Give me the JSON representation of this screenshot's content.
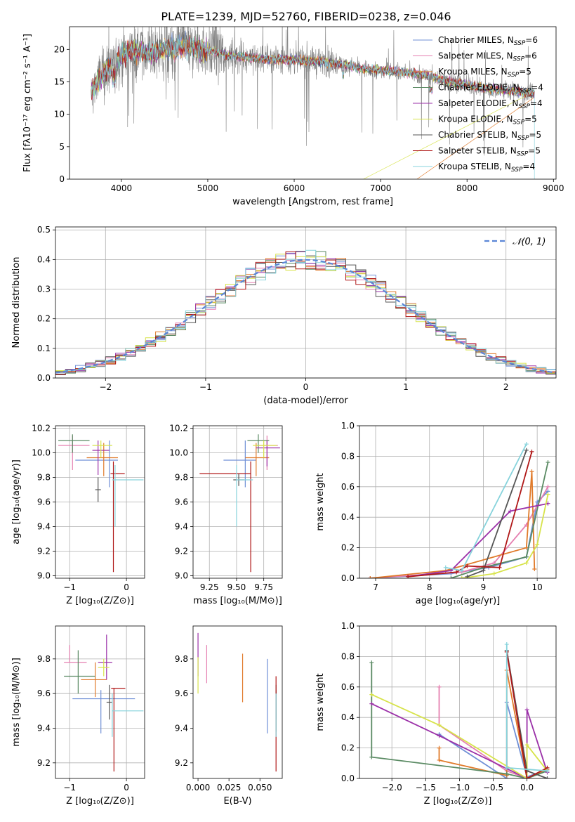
{
  "figure_title": "PLATE=1239, MJD=52760, FIBERID=0238, z=0.046",
  "models": [
    {
      "name": "Chabrier MILES",
      "nssp": "6",
      "color": "#6f8fd6"
    },
    {
      "name": "Salpeter MILES",
      "nssp": "6",
      "color": "#e57fb0"
    },
    {
      "name": "Kroupa MILES",
      "nssp": "5",
      "color": "#e07a2a"
    },
    {
      "name": "Chabrier ELODIE",
      "nssp": "4",
      "color": "#5a8a63"
    },
    {
      "name": "Salpeter ELODIE",
      "nssp": "4",
      "color": "#9b30a8"
    },
    {
      "name": "Kroupa ELODIE",
      "nssp": "5",
      "color": "#d7e34a"
    },
    {
      "name": "Chabrier STELIB",
      "nssp": "5",
      "color": "#555555"
    },
    {
      "name": "Salpeter STELIB",
      "nssp": "5",
      "color": "#b01818"
    },
    {
      "name": "Kroupa STELIB",
      "nssp": "4",
      "color": "#87d3dc"
    }
  ],
  "chart_data": [
    {
      "id": "spectrum",
      "type": "line",
      "xlabel": "wavelength [Angstrom, rest frame]",
      "ylabel": "Flux [fλ10⁻¹⁷ erg cm⁻² s⁻¹ A⁻¹]",
      "xlim": [
        3400,
        9030
      ],
      "ylim": [
        0,
        23.5
      ],
      "xticks": [
        4000,
        5000,
        6000,
        7000,
        8000,
        9000
      ],
      "yticks": [
        0,
        5,
        10,
        15,
        20
      ],
      "observed": {
        "name": "data",
        "color": "#808080",
        "x_range": [
          3650,
          8780
        ]
      },
      "model_profile": {
        "x": [
          3650,
          3700,
          3800,
          3900,
          4000,
          4100,
          4300,
          4500,
          4700,
          5000,
          5300,
          5600,
          6000,
          6400,
          6600,
          6800,
          7000,
          7200,
          7400,
          7600,
          7800,
          8000,
          8200,
          8500,
          8780
        ],
        "y": [
          13.0,
          14.5,
          16.5,
          17.5,
          19.0,
          19.8,
          19.5,
          20.0,
          20.5,
          19.8,
          19.0,
          18.6,
          18.4,
          18.0,
          17.6,
          17.0,
          16.8,
          16.6,
          16.2,
          15.8,
          15.0,
          14.6,
          14.0,
          13.6,
          13.2
        ]
      },
      "model_extent": [
        3650,
        8780
      ],
      "series_cutoffs": [
        {
          "model": "Kroupa MILES",
          "x": [
            3900,
            7420
          ]
        },
        {
          "model": "Kroupa ELODIE",
          "x": [
            3900,
            6800
          ]
        },
        {
          "model": "Kroupa STELIB",
          "x": [
            4400,
            8780
          ]
        }
      ],
      "legend": "top-right",
      "grid": false
    },
    {
      "id": "residuals",
      "type": "histogram",
      "xlabel": "(data-model)/error",
      "ylabel": "Normed distribution",
      "xlim": [
        -2.5,
        2.5
      ],
      "ylim": [
        0,
        0.51
      ],
      "xticks": [
        -2,
        -1,
        0,
        1,
        2
      ],
      "yticks": [
        0,
        0.1,
        0.2,
        0.3,
        0.4,
        0.5
      ],
      "reference": {
        "label": "𝒩(0, 1)",
        "mean": 0,
        "sigma": 1,
        "color": "#5b86d6"
      },
      "bin_width": 0.1,
      "bin_start": -2.5,
      "legend": "top-right",
      "grid": true
    },
    {
      "id": "age-vs-z",
      "type": "scatter_errorbar",
      "xlabel": "Z [log₁₀(Z/Z⊙)]",
      "ylabel": "age  [log₁₀(age/yr)]",
      "xlim": [
        -1.25,
        0.32
      ],
      "ylim": [
        8.98,
        10.22
      ],
      "xticks": [
        -1,
        0
      ],
      "yticks": [
        9.0,
        9.2,
        9.4,
        9.6,
        9.8,
        10.0,
        10.2
      ],
      "grid": true,
      "points": [
        {
          "model": "Chabrier MILES",
          "x": -0.3,
          "xerr": [
            0.6,
            0.15
          ],
          "y": 9.94,
          "yerr": [
            0.22,
            0.16
          ]
        },
        {
          "model": "Salpeter MILES",
          "x": -0.95,
          "xerr": [
            0.25,
            0.3
          ],
          "y": 10.06,
          "yerr": [
            0.2,
            0.08
          ]
        },
        {
          "model": "Kroupa MILES",
          "x": -0.4,
          "xerr": [
            0.3,
            0.25
          ],
          "y": 9.96,
          "yerr": [
            0.15,
            0.12
          ]
        },
        {
          "model": "Chabrier ELODIE",
          "x": -0.95,
          "xerr": [
            0.25,
            0.3
          ],
          "y": 10.1,
          "yerr": [
            0.1,
            0.05
          ]
        },
        {
          "model": "Salpeter ELODIE",
          "x": -0.5,
          "xerr": [
            0.1,
            0.2
          ],
          "y": 10.02,
          "yerr": [
            0.2,
            0.08
          ]
        },
        {
          "model": "Kroupa ELODIE",
          "x": -0.45,
          "xerr": [
            0.15,
            0.2
          ],
          "y": 10.06,
          "yerr": [
            0.1,
            0.04
          ]
        },
        {
          "model": "Chabrier STELIB",
          "x": -0.5,
          "xerr": [
            0.05,
            0.05
          ],
          "y": 9.7,
          "yerr": [
            0.1,
            0.1
          ]
        },
        {
          "model": "Salpeter STELIB",
          "x": -0.23,
          "xerr": [
            0.05,
            0.2
          ],
          "y": 9.83,
          "yerr": [
            0.8,
            0.1
          ]
        },
        {
          "model": "Kroupa STELIB",
          "x": -0.2,
          "xerr": [
            0.05,
            0.5
          ],
          "y": 9.78,
          "yerr": [
            0.38,
            0.12
          ]
        }
      ]
    },
    {
      "id": "age-vs-mass",
      "type": "scatter_errorbar",
      "xlabel": "mass [log₁₀(M/M⊙)]",
      "ylabel": "",
      "xlim": [
        9.1,
        9.92
      ],
      "ylim": [
        8.98,
        10.22
      ],
      "xticks": [
        9.25,
        9.5,
        9.75
      ],
      "yticks": [
        9.0,
        9.2,
        9.4,
        9.6,
        9.8,
        10.0,
        10.2
      ],
      "grid": true,
      "points": [
        {
          "model": "Chabrier MILES",
          "x": 9.58,
          "xerr": [
            0.2,
            0.1
          ],
          "y": 9.94,
          "yerr": [
            0.22,
            0.16
          ]
        },
        {
          "model": "Salpeter MILES",
          "x": 9.78,
          "xerr": [
            0.1,
            0.1
          ],
          "y": 10.06,
          "yerr": [
            0.2,
            0.08
          ]
        },
        {
          "model": "Kroupa MILES",
          "x": 9.68,
          "xerr": [
            0.1,
            0.12
          ],
          "y": 9.96,
          "yerr": [
            0.15,
            0.12
          ]
        },
        {
          "model": "Chabrier ELODIE",
          "x": 9.7,
          "xerr": [
            0.1,
            0.1
          ],
          "y": 10.1,
          "yerr": [
            0.1,
            0.05
          ]
        },
        {
          "model": "Salpeter ELODIE",
          "x": 9.78,
          "xerr": [
            0.1,
            0.12
          ],
          "y": 10.04,
          "yerr": [
            0.15,
            0.06
          ]
        },
        {
          "model": "Kroupa ELODIE",
          "x": 9.75,
          "xerr": [
            0.1,
            0.12
          ],
          "y": 10.06,
          "yerr": [
            0.1,
            0.04
          ]
        },
        {
          "model": "Chabrier STELIB",
          "x": 9.52,
          "xerr": [
            0.05,
            0.05
          ],
          "y": 9.78,
          "yerr": [
            0.05,
            0.05
          ]
        },
        {
          "model": "Salpeter STELIB",
          "x": 9.63,
          "xerr": [
            0.47,
            0.0
          ],
          "y": 9.83,
          "yerr": [
            0.8,
            0.1
          ]
        },
        {
          "model": "Kroupa STELIB",
          "x": 9.5,
          "xerr": [
            0.0,
            0.15
          ],
          "y": 9.78,
          "yerr": [
            0.38,
            0.12
          ]
        }
      ]
    },
    {
      "id": "massweight-vs-age",
      "type": "line",
      "xlabel": "age  [log₁₀(age/yr)]",
      "ylabel": "mass weight",
      "xlim": [
        6.7,
        10.35
      ],
      "ylim": [
        0,
        1.0
      ],
      "xticks": [
        7,
        8,
        9,
        10
      ],
      "yticks": [
        0,
        0.2,
        0.4,
        0.6,
        0.8,
        1.0
      ],
      "grid": true,
      "series": [
        {
          "model": "Chabrier MILES",
          "x": [
            6.9,
            8.4,
            9.1,
            9.8,
            10.0,
            10.2
          ],
          "y": [
            0.0,
            0.03,
            0.07,
            0.14,
            0.5,
            0.57
          ]
        },
        {
          "model": "Salpeter MILES",
          "x": [
            6.9,
            8.6,
            9.2,
            9.8,
            10.2
          ],
          "y": [
            0.0,
            0.04,
            0.1,
            0.35,
            0.6
          ]
        },
        {
          "model": "Kroupa MILES",
          "x": [
            6.9,
            8.3,
            9.8,
            9.9,
            9.95
          ],
          "y": [
            0.0,
            0.05,
            0.2,
            0.7,
            0.06
          ]
        },
        {
          "model": "Chabrier ELODIE",
          "x": [
            8.4,
            9.0,
            9.8,
            10.2
          ],
          "y": [
            0.0,
            0.07,
            0.14,
            0.76
          ]
        },
        {
          "model": "Salpeter ELODIE",
          "x": [
            7.6,
            8.4,
            9.5,
            10.2
          ],
          "y": [
            0.01,
            0.05,
            0.44,
            0.49
          ]
        },
        {
          "model": "Kroupa ELODIE",
          "x": [
            8.6,
            9.2,
            9.8,
            10.0,
            10.2
          ],
          "y": [
            0.0,
            0.03,
            0.1,
            0.22,
            0.55
          ]
        },
        {
          "model": "Chabrier STELIB",
          "x": [
            8.7,
            9.0,
            9.8
          ],
          "y": [
            0.01,
            0.05,
            0.84
          ]
        },
        {
          "model": "Salpeter STELIB",
          "x": [
            7.6,
            8.5,
            8.7,
            9.3,
            9.9
          ],
          "y": [
            0.01,
            0.04,
            0.08,
            0.07,
            0.83
          ]
        },
        {
          "model": "Kroupa STELIB",
          "x": [
            8.3,
            8.6,
            9.8
          ],
          "y": [
            0.07,
            0.05,
            0.88
          ]
        }
      ]
    },
    {
      "id": "mass-vs-z",
      "type": "scatter_errorbar",
      "xlabel": "Z [log₁₀(Z/Z⊙)]",
      "ylabel": "mass [log₁₀(M/M⊙)]",
      "xlim": [
        -1.25,
        0.32
      ],
      "ylim": [
        9.11,
        9.99
      ],
      "xticks": [
        -1,
        0
      ],
      "yticks": [
        9.2,
        9.4,
        9.6,
        9.8
      ],
      "grid": true,
      "points": [
        {
          "model": "Chabrier MILES",
          "x": -0.45,
          "xerr": [
            0.5,
            0.6
          ],
          "y": 9.57,
          "yerr": [
            0.2,
            0.05
          ]
        },
        {
          "model": "Salpeter MILES",
          "x": -1.0,
          "xerr": [
            0.1,
            0.3
          ],
          "y": 9.78,
          "yerr": [
            0.0,
            0.1
          ]
        },
        {
          "model": "Kroupa MILES",
          "x": -0.55,
          "xerr": [
            0.25,
            0.2
          ],
          "y": 9.68,
          "yerr": [
            0.1,
            0.1
          ]
        },
        {
          "model": "Chabrier ELODIE",
          "x": -0.85,
          "xerr": [
            0.25,
            0.3
          ],
          "y": 9.7,
          "yerr": [
            0.1,
            0.15
          ]
        },
        {
          "model": "Salpeter ELODIE",
          "x": -0.35,
          "xerr": [
            0.15,
            0.1
          ],
          "y": 9.78,
          "yerr": [
            0.1,
            0.16
          ]
        },
        {
          "model": "Kroupa ELODIE",
          "x": -0.4,
          "xerr": [
            0.1,
            0.1
          ],
          "y": 9.75,
          "yerr": [
            0.05,
            0.05
          ]
        },
        {
          "model": "Chabrier STELIB",
          "x": -0.3,
          "xerr": [
            0.05,
            0.05
          ],
          "y": 9.55,
          "yerr": [
            0.1,
            0.1
          ]
        },
        {
          "model": "Salpeter STELIB",
          "x": -0.22,
          "xerr": [
            0.05,
            0.2
          ],
          "y": 9.63,
          "yerr": [
            0.48,
            0.0
          ]
        },
        {
          "model": "Kroupa STELIB",
          "x": -0.25,
          "xerr": [
            0.0,
            0.55
          ],
          "y": 9.5,
          "yerr": [
            0.15,
            0.1
          ]
        }
      ]
    },
    {
      "id": "mass-vs-ebv",
      "type": "scatter_errorbar",
      "xlabel": "E(B-V)",
      "ylabel": "",
      "xlim": [
        -0.004,
        0.068
      ],
      "ylim": [
        9.11,
        9.99
      ],
      "xticks": [
        0.0,
        0.025,
        0.05
      ],
      "yticks": [
        9.2,
        9.4,
        9.6,
        9.8
      ],
      "grid": false,
      "points": [
        {
          "model": "Chabrier MILES",
          "x": 0.056,
          "xerr": [
            0,
            0
          ],
          "y": 9.57,
          "yerr": [
            0.2,
            0.23
          ]
        },
        {
          "model": "Salpeter MILES",
          "x": 0.007,
          "xerr": [
            0,
            0
          ],
          "y": 9.78,
          "yerr": [
            0.12,
            0.1
          ]
        },
        {
          "model": "Kroupa MILES",
          "x": 0.036,
          "xerr": [
            0,
            0
          ],
          "y": 9.68,
          "yerr": [
            0.13,
            0.15
          ]
        },
        {
          "model": "Chabrier ELODIE",
          "x": 0.063,
          "xerr": [
            0,
            0
          ],
          "y": 9.5,
          "yerr": [
            0.12,
            0.12
          ]
        },
        {
          "model": "Salpeter ELODIE",
          "x": 0.0,
          "xerr": [
            0,
            0
          ],
          "y": 9.8,
          "yerr": [
            0.1,
            0.15
          ]
        },
        {
          "model": "Kroupa ELODIE",
          "x": 0.0,
          "xerr": [
            0,
            0
          ],
          "y": 9.7,
          "yerr": [
            0.1,
            0.11
          ]
        },
        {
          "model": "Chabrier STELIB",
          "x": 0.063,
          "xerr": [
            0,
            0
          ],
          "y": 9.55,
          "yerr": [
            0.1,
            0.1
          ]
        },
        {
          "model": "Salpeter STELIB",
          "x": 0.063,
          "xerr": [
            0,
            0
          ],
          "y": 9.5,
          "yerr": [
            0.35,
            0.2
          ]
        },
        {
          "model": "Kroupa STELIB",
          "x": 0.063,
          "xerr": [
            0,
            0
          ],
          "y": 9.5,
          "yerr": [
            0.15,
            0.1
          ]
        }
      ]
    },
    {
      "id": "massweight-vs-z",
      "type": "line",
      "xlabel": "Z [log₁₀(Z/Z⊙)]",
      "ylabel": "mass weight",
      "xlim": [
        -2.48,
        0.43
      ],
      "ylim": [
        0,
        1.0
      ],
      "xticks": [
        -2.0,
        -1.5,
        -1.0,
        -0.5,
        0.0
      ],
      "yticks": [
        0,
        0.2,
        0.4,
        0.6,
        0.8,
        1.0
      ],
      "grid": true,
      "series": [
        {
          "model": "Chabrier MILES",
          "x": [
            -1.3,
            -0.3,
            -0.3,
            0.0,
            0.3
          ],
          "y": [
            0.29,
            0.0,
            0.5,
            0.01,
            0.06
          ]
        },
        {
          "model": "Salpeter MILES",
          "x": [
            -1.3,
            -1.3,
            -0.3,
            0.0,
            0.3
          ],
          "y": [
            0.6,
            0.35,
            0.05,
            0.0,
            0.05
          ]
        },
        {
          "model": "Kroupa MILES",
          "x": [
            -1.3,
            -1.3,
            -0.3,
            -0.3,
            0.0,
            0.3
          ],
          "y": [
            0.2,
            0.12,
            0.02,
            0.71,
            0.0,
            0.06
          ]
        },
        {
          "model": "Chabrier ELODIE",
          "x": [
            -2.3,
            -2.3,
            -0.3,
            0.0,
            0.3
          ],
          "y": [
            0.76,
            0.14,
            0.03,
            0.0,
            0.05
          ]
        },
        {
          "model": "Salpeter ELODIE",
          "x": [
            -2.3,
            -1.3,
            0.0,
            0.0,
            0.3
          ],
          "y": [
            0.49,
            0.28,
            0.0,
            0.45,
            0.04
          ]
        },
        {
          "model": "Kroupa ELODIE",
          "x": [
            -2.3,
            -1.3,
            0.0,
            0.0,
            0.3
          ],
          "y": [
            0.55,
            0.35,
            0.0,
            0.22,
            0.05
          ]
        },
        {
          "model": "Chabrier STELIB",
          "x": [
            -0.3,
            0.0,
            0.3
          ],
          "y": [
            0.84,
            0.05,
            0.0
          ]
        },
        {
          "model": "Salpeter STELIB",
          "x": [
            -0.3,
            0.0,
            0.3
          ],
          "y": [
            0.83,
            0.0,
            0.07
          ]
        },
        {
          "model": "Kroupa STELIB",
          "x": [
            -0.3,
            -0.3,
            0.3
          ],
          "y": [
            0.88,
            0.07,
            0.05
          ]
        }
      ]
    }
  ]
}
